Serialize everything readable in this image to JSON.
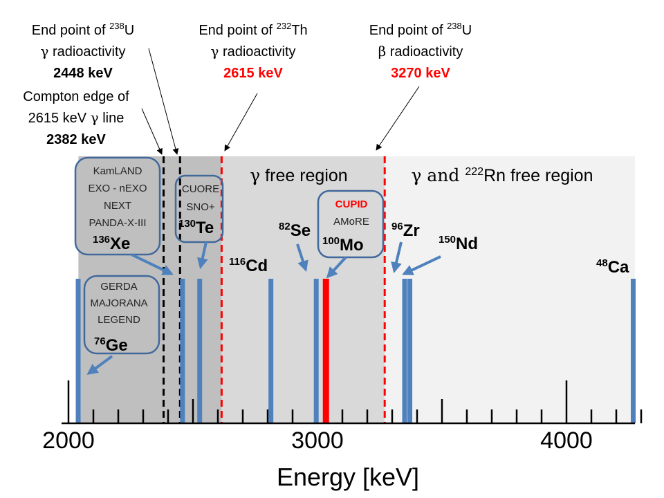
{
  "colors": {
    "isotope_line": "#4f81bd",
    "highlight_line": "#ff0000",
    "callout_border": "#41699b",
    "arrow": "#4f81bd",
    "gamma_region_bg": "#bfbfbf",
    "gamma_free_bg": "#d9d9d9",
    "rn_free_bg": "#f2f2f2"
  },
  "chart_data": {
    "type": "bar",
    "xlabel": "Energy [keV]",
    "xlim": [
      2000,
      4300
    ],
    "ticks": [
      2000,
      3000,
      4000
    ],
    "tick_labels": [
      "2000",
      "3000",
      "4000"
    ],
    "regions": [
      {
        "from": 2040,
        "to": 2615,
        "label": ""
      },
      {
        "from": 2615,
        "to": 3270,
        "label": "γ free region"
      },
      {
        "from": 3270,
        "to": 4300,
        "label": "γ and 222Rn free region",
        "label_pre": "γ and ",
        "label_sup": "222",
        "label_post": "Rn free region"
      }
    ],
    "reference_lines": [
      {
        "energy": 2382,
        "style": "black-dashed"
      },
      {
        "energy": 2448,
        "style": "black-dashed"
      },
      {
        "energy": 2615,
        "style": "red-dashed"
      },
      {
        "energy": 3270,
        "style": "red-dashed"
      }
    ],
    "isotopes": [
      {
        "name": "Ge",
        "mass": "76",
        "energy": 2039,
        "highlight": false
      },
      {
        "name": "Xe",
        "mass": "136",
        "energy": 2458,
        "highlight": false
      },
      {
        "name": "Te",
        "mass": "130",
        "energy": 2527,
        "highlight": false
      },
      {
        "name": "Cd",
        "mass": "116",
        "energy": 2813,
        "highlight": false
      },
      {
        "name": "Se",
        "mass": "82",
        "energy": 2995,
        "highlight": false
      },
      {
        "name": "Mo",
        "mass": "100",
        "energy": 3034,
        "highlight": true
      },
      {
        "name": "Zr",
        "mass": "96",
        "energy": 3350,
        "highlight": false
      },
      {
        "name": "Nd",
        "mass": "150",
        "energy": 3371,
        "highlight": false
      },
      {
        "name": "Ca",
        "mass": "48",
        "energy": 4268,
        "highlight": false
      }
    ],
    "annotations": [
      {
        "lines": [
          "End point of 238U",
          "γ radioactivity",
          "2448 keV"
        ],
        "energy": 2448
      },
      {
        "lines": [
          "Compton edge of",
          "2615 keV γ line",
          "2382 keV"
        ],
        "energy": 2382
      },
      {
        "lines": [
          "End point of 232Th",
          "γ radioactivity",
          "2615 keV"
        ],
        "energy": 2615
      },
      {
        "lines": [
          "End point of 238U",
          "β radioactivity",
          "3270 keV"
        ],
        "energy": 3270
      }
    ],
    "experiments": [
      {
        "isotope": "Ge",
        "names": [
          "GERDA",
          "MAJORANA",
          "LEGEND"
        ]
      },
      {
        "isotope": "Xe",
        "names": [
          "KamLAND",
          "EXO - nEXO",
          "NEXT",
          "PANDA-X-III"
        ]
      },
      {
        "isotope": "Te",
        "names": [
          "CUORE",
          "SNO+"
        ]
      },
      {
        "isotope": "Mo",
        "names": [
          "CUPID",
          "AMoRE"
        ]
      }
    ]
  },
  "annotations_text": {
    "u_gamma": {
      "l1_pre": "End point of ",
      "l1_sup": "238",
      "l1_post": "U",
      "l2_sym": "γ",
      "l2_post": " radioactivity",
      "value": "2448 keV"
    },
    "compton": {
      "l1": "Compton edge of",
      "l2_pre": "2615 keV ",
      "l2_sym": "γ",
      "l2_post": " line",
      "value": "2382 keV"
    },
    "th_gamma": {
      "l1_pre": "End point of ",
      "l1_sup": "232",
      "l1_post": "Th",
      "l2_sym": "γ",
      "l2_post": " radioactivity",
      "value": "2615 keV"
    },
    "u_beta": {
      "l1_pre": "End point of ",
      "l1_sup": "238",
      "l1_post": "U",
      "l2_sym": "β",
      "l2_post": " radioactivity",
      "value": "3270 keV"
    }
  },
  "callouts": {
    "xe": [
      "KamLAND",
      "EXO - nEXO",
      "NEXT",
      "PANDA-X-III"
    ],
    "ge": [
      "GERDA",
      "MAJORANA",
      "LEGEND"
    ],
    "te": [
      "CUORE",
      "SNO+"
    ],
    "mo_red": "CUPID",
    "mo_black": "AMoRE"
  },
  "isotope_labels": {
    "xe": {
      "mass": "136",
      "sym": "Xe"
    },
    "ge": {
      "mass": "76",
      "sym": "Ge"
    },
    "te": {
      "mass": "130",
      "sym": "Te"
    },
    "cd": {
      "mass": "116",
      "sym": "Cd"
    },
    "se": {
      "mass": "82",
      "sym": "Se"
    },
    "mo": {
      "mass": "100",
      "sym": "Mo"
    },
    "zr": {
      "mass": "96",
      "sym": "Zr"
    },
    "nd": {
      "mass": "150",
      "sym": "Nd"
    },
    "ca": {
      "mass": "48",
      "sym": "Ca"
    }
  },
  "region_labels": {
    "gamma_free_sym": "γ",
    "gamma_free_rest": " free region",
    "rn_free_pre": "γ and ",
    "rn_free_sup": "222",
    "rn_free_post": "Rn free region"
  }
}
